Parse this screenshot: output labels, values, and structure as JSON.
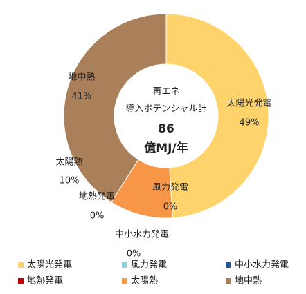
{
  "chart_data": {
    "type": "donut",
    "annotations": [
      "再エネ",
      "導入ポテンシャル計"
    ],
    "total_value": 86,
    "total_unit": "億MJ/年",
    "categories": [
      "太陽光発電",
      "風力発電",
      "中小水力発電",
      "地熱発電",
      "太陽熱",
      "地中熱"
    ],
    "values": [
      49,
      0,
      0,
      0,
      10,
      41
    ],
    "value_labels": [
      "49%",
      "0%",
      "0%",
      "0%",
      "10%",
      "41%"
    ],
    "colors": [
      "#FFD36B",
      "#92CDDC",
      "#2E5597",
      "#C00000",
      "#F79646",
      "#A9805A"
    ],
    "legend": "bottom"
  }
}
